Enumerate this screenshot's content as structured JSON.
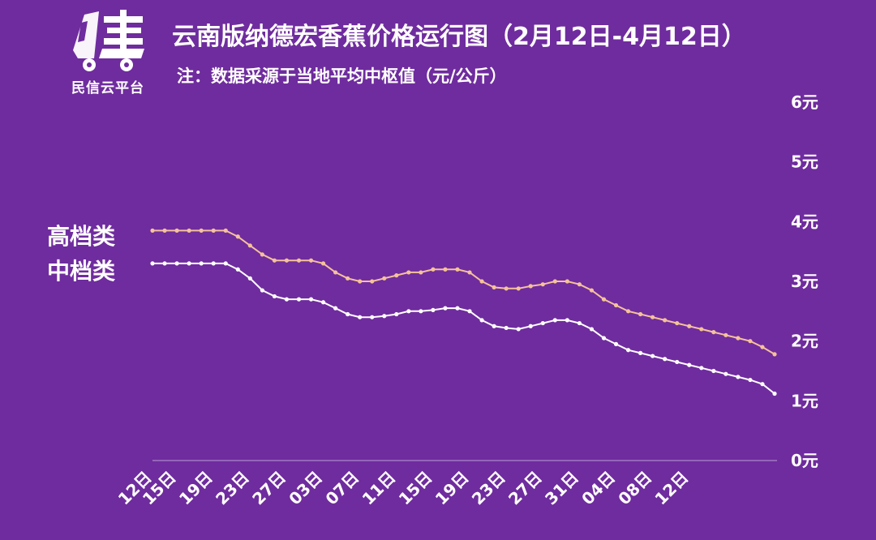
{
  "logo": {
    "text": "民信云平台",
    "icon": "truck-logo-icon"
  },
  "chart_data": {
    "type": "line",
    "title": "云南版纳德宏香蕉价格运行图（2月12日-4月12日）",
    "subtitle": "注：数据采源于当地平均中枢值（元/公斤）",
    "xlabel": "",
    "ylabel": "",
    "ylim": [
      0,
      6
    ],
    "yticks": [
      "0元",
      "1元",
      "2元",
      "3元",
      "4元",
      "5元",
      "6元"
    ],
    "xtick_labels": [
      "12日",
      "15日",
      "19日",
      "23日",
      "27日",
      "03日",
      "07日",
      "11日",
      "15日",
      "19日",
      "23日",
      "27日",
      "31日",
      "04日",
      "08日",
      "12日"
    ],
    "xtick_index": [
      0,
      2,
      5,
      8,
      11,
      14,
      17,
      20,
      23,
      26,
      29,
      32,
      35,
      38,
      41,
      44
    ],
    "grid": false,
    "legend": "left",
    "series": [
      {
        "name": "高档类",
        "color": "#f5c29a",
        "values": [
          3.85,
          3.85,
          3.85,
          3.85,
          3.85,
          3.85,
          3.85,
          3.75,
          3.6,
          3.45,
          3.35,
          3.35,
          3.35,
          3.35,
          3.3,
          3.15,
          3.05,
          3.0,
          3.0,
          3.05,
          3.1,
          3.15,
          3.15,
          3.2,
          3.2,
          3.2,
          3.15,
          3.0,
          2.9,
          2.88,
          2.88,
          2.92,
          2.95,
          3.0,
          3.0,
          2.95,
          2.85,
          2.7,
          2.6,
          2.5,
          2.45,
          2.4,
          2.35,
          2.3,
          2.25,
          2.2,
          2.15,
          2.1,
          2.05,
          2.0,
          1.9,
          1.78
        ]
      },
      {
        "name": "中档类",
        "color": "#ffffff",
        "values": [
          3.3,
          3.3,
          3.3,
          3.3,
          3.3,
          3.3,
          3.3,
          3.2,
          3.05,
          2.85,
          2.75,
          2.7,
          2.7,
          2.7,
          2.65,
          2.55,
          2.45,
          2.4,
          2.4,
          2.42,
          2.45,
          2.5,
          2.5,
          2.52,
          2.55,
          2.55,
          2.5,
          2.35,
          2.25,
          2.22,
          2.2,
          2.25,
          2.3,
          2.35,
          2.35,
          2.3,
          2.2,
          2.05,
          1.95,
          1.85,
          1.8,
          1.75,
          1.7,
          1.65,
          1.6,
          1.55,
          1.5,
          1.45,
          1.4,
          1.35,
          1.28,
          1.12
        ]
      }
    ]
  }
}
